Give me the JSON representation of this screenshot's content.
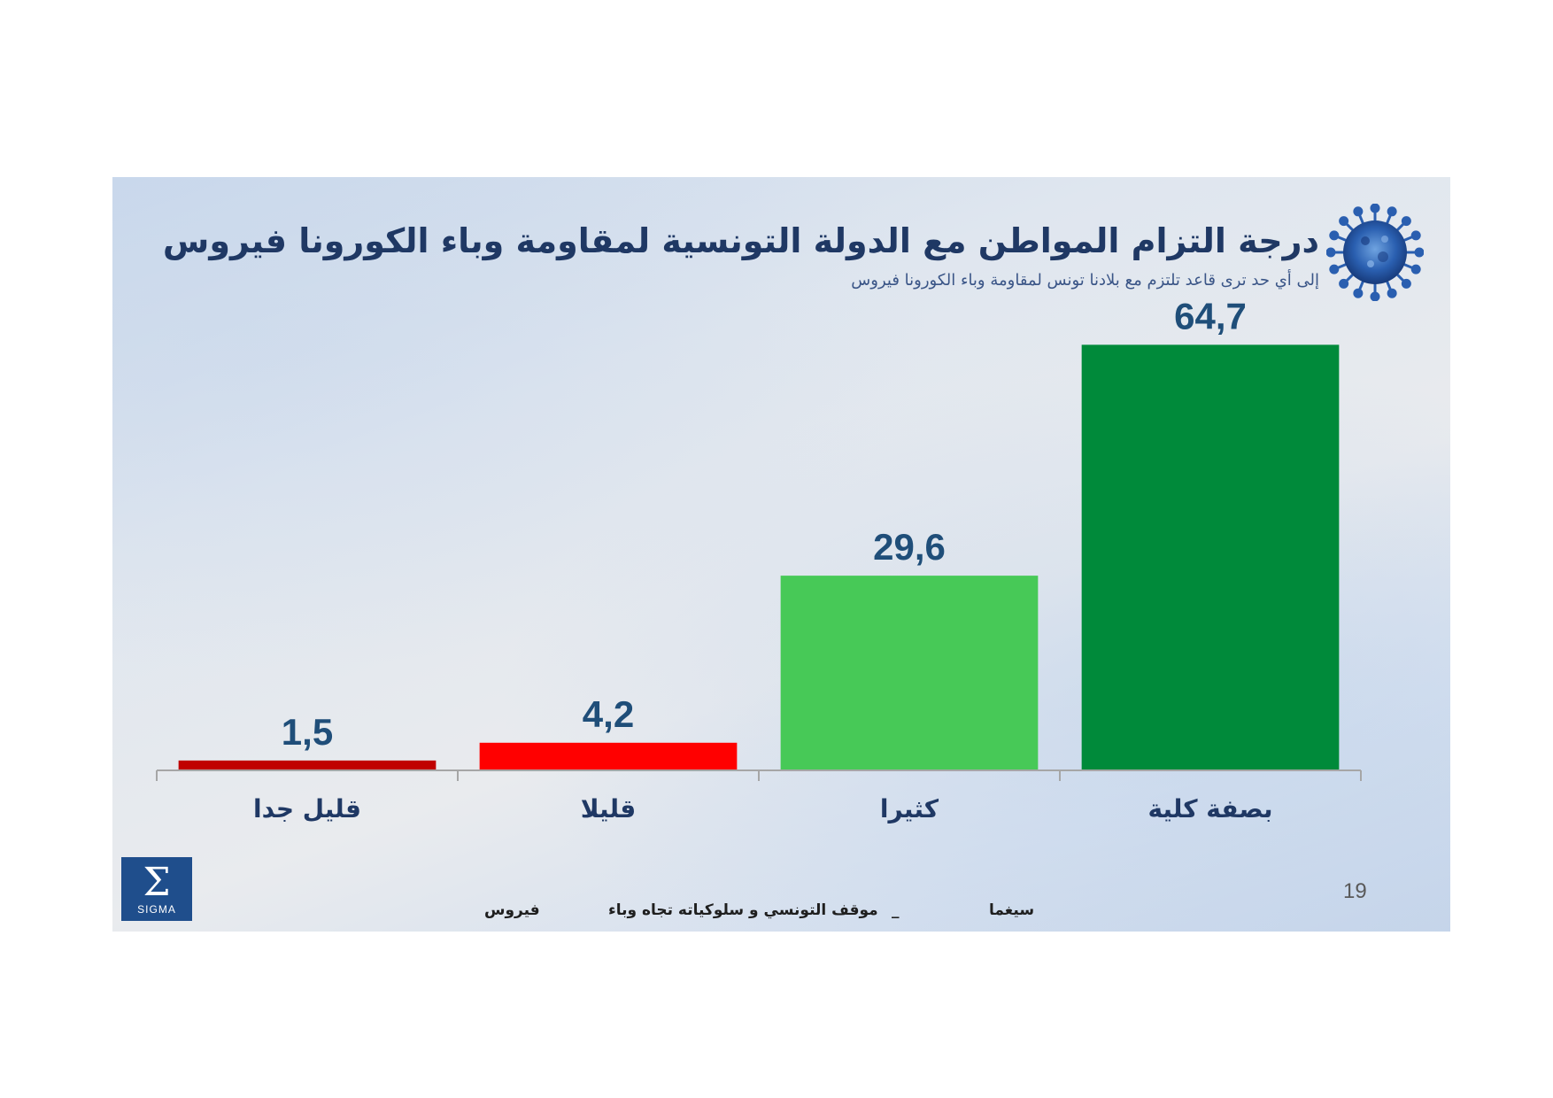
{
  "slide": {
    "title": "درجة التزام المواطن مع الدولة التونسية لمقاومة وباء الكورونا فيروس",
    "subtitle": "إلى أي حد ترى قاعد تلتزم مع بلادنا تونس لمقاومة وباء الكورونا فيروس",
    "page_number": "19",
    "logo_text": "SIGMA",
    "footer": {
      "brand": "سيغما",
      "separator": "_",
      "topic": "موقف التونسي و سلوكياته تجاه وباء",
      "topic_end": "فيروس"
    },
    "icons": [
      "virus-icon",
      "sigma-logo"
    ]
  },
  "chart_data": {
    "type": "bar",
    "title": "درجة التزام المواطن مع الدولة التونسية لمقاومة وباء الكورونا فيروس",
    "subtitle": "إلى أي حد ترى قاعد تلتزم مع بلادنا تونس لمقاومة وباء الكورونا فيروس",
    "categories": [
      "قليل جدا",
      "قليلا",
      "كثيرا",
      "بصفة كلية"
    ],
    "values": [
      1.5,
      4.2,
      29.6,
      64.7
    ],
    "value_labels": [
      "1,5",
      "4,2",
      "29,6",
      "64,7"
    ],
    "colors": [
      "#c00000",
      "#ff0000",
      "#47c957",
      "#008a3a"
    ],
    "ylim": [
      0,
      70
    ],
    "grid": false,
    "legend": "none",
    "label_color": "#1f4e79",
    "axis_color": "#a6a6a6"
  }
}
